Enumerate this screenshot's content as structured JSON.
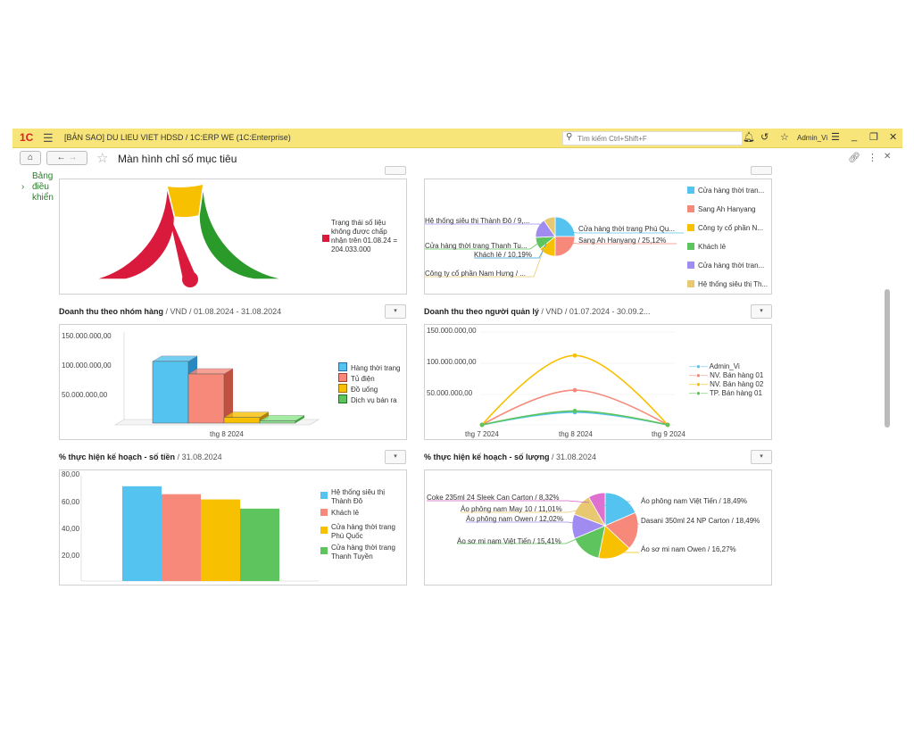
{
  "window": {
    "logo": "1С",
    "title": "[BẢN SAO] DU LIEU VIET HDSD / 1C:ERP WE  (1C:Enterprise)",
    "search_placeholder": "Tìm kiếm Ctrl+Shift+F",
    "user": "Admin_Vi"
  },
  "nav": {
    "page_title": "Màn hình chỉ số mục tiêu"
  },
  "sidebar": {
    "item_lines": [
      "Bảng",
      "điều",
      "khiển"
    ]
  },
  "gauge": {
    "legend": [
      "Trạng thái số liệu",
      "không được chấp",
      "nhận trên 01.08.24 =",
      "204.033.000"
    ],
    "colors": {
      "red": "#d91a3c",
      "yellow": "#f7c000",
      "green": "#2a9a2a"
    }
  },
  "pie1": {
    "labels": [
      "Hệ thống siêu thị Thành Đô / 9,...",
      "Cửa hàng thời trang Thanh Tu...",
      "Khách lẻ / 10,19%",
      "Công ty cổ phần Nam Hưng / ...",
      "Cửa hàng thời trang Phú Qu...",
      "Sang Ah Hanyang / 25,12%"
    ],
    "legend": [
      "Cửa hàng thời tran...",
      "Sang Ah Hanyang",
      "Công ty cổ phần N...",
      "Khách lẻ",
      "Cửa hàng thời tran...",
      "Hệ thống siêu thị Th..."
    ],
    "colors": [
      "#55c3f0",
      "#f7897a",
      "#f7c000",
      "#5ec45e",
      "#a08cf0",
      "#e8c870"
    ]
  },
  "revenue_group": {
    "title": "Doanh thu theo nhóm hàng",
    "subtitle": "/ VND / 01.08.2024 - 31.08.2024"
  },
  "revenue_manager": {
    "title": "Doanh thu theo người quản lý",
    "subtitle": "/ VND / 01.07.2024 - 30.09.2..."
  },
  "plan_amount": {
    "title": "% thực hiện kế hoạch - số tiền",
    "subtitle": "/ 31.08.2024"
  },
  "plan_qty": {
    "title": "% thực hiện kế hoạch - số lượng",
    "subtitle": "/ 31.08.2024"
  },
  "chart_data": [
    {
      "type": "pie",
      "title": "",
      "categories": [
        "Cửa hàng thời trang Phú Qu...",
        "Sang Ah Hanyang",
        "Công ty cổ phần Nam Hưng",
        "Khách lẻ",
        "Cửa hàng thời trang Thanh Tu...",
        "Hệ thống siêu thị Thành Đô"
      ],
      "values": [
        25.0,
        25.12,
        14.0,
        10.19,
        16.0,
        9.69
      ]
    },
    {
      "type": "bar",
      "title": "Doanh thu theo nhóm hàng",
      "categories": [
        "thg 8 2024"
      ],
      "series": [
        {
          "name": "Hàng thời trang",
          "values": [
            108000000
          ]
        },
        {
          "name": "Tủ điện",
          "values": [
            86000000
          ]
        },
        {
          "name": "Đồ uống",
          "values": [
            10000000
          ]
        },
        {
          "name": "Dịch vụ bán ra",
          "values": [
            4000000
          ]
        }
      ],
      "yticks": [
        "150.000.000,00",
        "100.000.000,00",
        "50.000.000,00"
      ],
      "ylim": [
        0,
        150000000
      ]
    },
    {
      "type": "line",
      "title": "Doanh thu theo người quản lý",
      "categories": [
        "thg 7 2024",
        "thg 8 2024",
        "thg 9 2024"
      ],
      "series": [
        {
          "name": "Admin_Vi",
          "values": [
            0,
            20000000,
            0
          ]
        },
        {
          "name": "NV. Bán hàng 01",
          "values": [
            0,
            55000000,
            0
          ]
        },
        {
          "name": "NV. Bán hàng 02",
          "values": [
            0,
            110000000,
            0
          ]
        },
        {
          "name": "TP. Bán hàng 01",
          "values": [
            0,
            22000000,
            0
          ]
        }
      ],
      "yticks": [
        "150.000.000,00",
        "100.000.000,00",
        "50.000.000,00"
      ],
      "ylim": [
        0,
        150000000
      ]
    },
    {
      "type": "bar",
      "title": "% thực hiện kế hoạch - số tiền",
      "categories": [
        "Hệ thống siêu thị Thành Đô",
        "Khách lẻ",
        "Cửa hàng thời trang Phú Quốc",
        "Cửa hàng thời trang Thanh Tuyền"
      ],
      "values": [
        72,
        66,
        62,
        55
      ],
      "yticks": [
        "80,00",
        "60,00",
        "40,00",
        "20,00"
      ],
      "ylim": [
        0,
        80
      ]
    },
    {
      "type": "pie",
      "title": "% thực hiện kế hoạch - số lượng",
      "categories": [
        "Áo phông nam Việt Tiến",
        "Dasani 350ml 24 NP Carton",
        "Áo sơ mi nam Owen",
        "Áo sơ mi nam Việt Tiến",
        "Áo phông nam Owen",
        "Áo phông nam May 10",
        "Coke 235ml 24 Sleek Can Carton"
      ],
      "values": [
        18.49,
        18.49,
        16.27,
        15.41,
        12.02,
        11.01,
        8.32
      ],
      "labels": [
        "Áo phông nam Việt Tiến / 18,49%",
        "Dasani 350ml 24 NP Carton / 18,49%",
        "Áo sơ mi nam Owen / 16,27%",
        "Áo sơ mi nam Việt Tiến / 15,41%",
        "Áo phông nam Owen / 12,02%",
        "Áo phông nam May 10 / 11,01%",
        "Coke 235ml 24 Sleek Can Carton / 8,32%"
      ]
    }
  ],
  "colors": {
    "blue": "#55c3f0",
    "salmon": "#f7897a",
    "yellow": "#f7c000",
    "green": "#5ec45e",
    "purple": "#a08cf0",
    "gold": "#e8c870"
  }
}
